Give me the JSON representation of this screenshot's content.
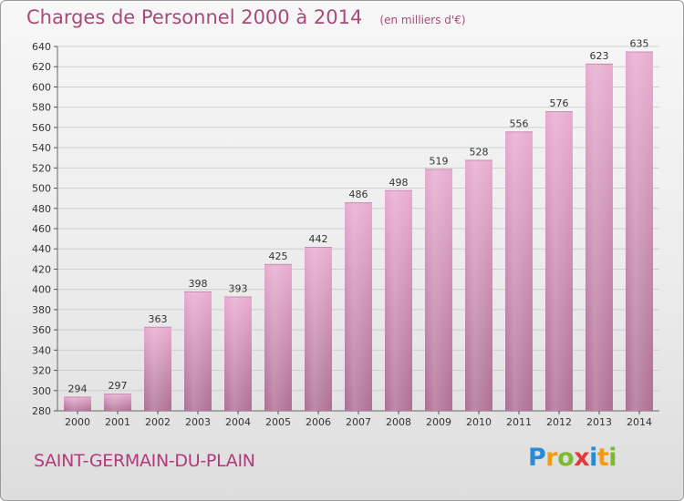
{
  "chart_data": {
    "type": "bar",
    "title": "Charges de Personnel 2000 à 2014",
    "subtitle": "(en milliers d'€)",
    "categories": [
      "2000",
      "2001",
      "2002",
      "2003",
      "2004",
      "2005",
      "2006",
      "2007",
      "2008",
      "2009",
      "2010",
      "2011",
      "2012",
      "2013",
      "2014"
    ],
    "values": [
      294,
      297,
      363,
      398,
      393,
      425,
      442,
      486,
      498,
      519,
      528,
      556,
      576,
      623,
      635
    ],
    "ylim": [
      280,
      640
    ],
    "yticks": [
      280,
      300,
      320,
      340,
      360,
      380,
      400,
      420,
      440,
      460,
      480,
      500,
      520,
      540,
      560,
      580,
      600,
      620,
      640
    ],
    "xlabel": "",
    "ylabel": "",
    "grid": true,
    "colors": {
      "bar_light": "#e8acd0",
      "bar_dark": "#ad6f93",
      "grid": "#cfcfcf",
      "text": "#333333"
    }
  },
  "footer": {
    "commune": "SAINT-GERMAIN-DU-PLAIN",
    "logo_letters": [
      "P",
      "r",
      "o",
      "x",
      "i",
      "t",
      "i"
    ],
    "logo_colors": [
      "#2a8ad6",
      "#f39c12",
      "#7cba2f",
      "#e03b3b",
      "#2a8ad6",
      "#f39c12",
      "#7cba2f"
    ]
  }
}
